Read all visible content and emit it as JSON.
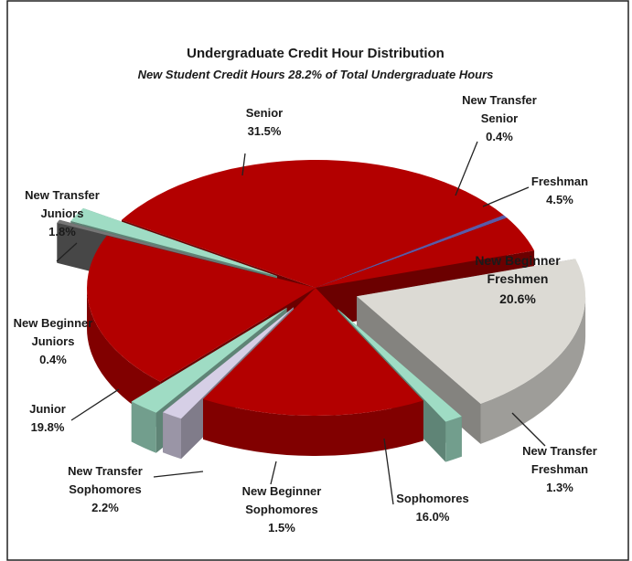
{
  "chart_data": {
    "type": "pie",
    "title": "Undergraduate Credit Hour Distribution",
    "subtitle": "New Student Credit Hours  28.2% of Total Undergraduate Hours",
    "categories": [
      "Senior",
      "New Transfer Senior",
      "Freshman",
      "New  Beginner Freshmen",
      "New Transfer Freshman",
      "Sophomores",
      "New Beginner Sophomores",
      "New Transfer Sophomores",
      "Junior",
      "New Beginner Juniors",
      "New Transfer Juniors"
    ],
    "values": [
      31.5,
      0.4,
      4.5,
      20.6,
      1.3,
      16.0,
      1.5,
      2.2,
      19.8,
      0.4,
      1.8
    ],
    "value_labels": [
      "31.5%",
      "0.4%",
      "4.5%",
      "20.6%",
      "1.3%",
      "16.0%",
      "1.5%",
      "2.2%",
      "19.8%",
      "0.4%",
      "1.8%"
    ],
    "colors": [
      "#b30000",
      "#5a5aa8",
      "#b30000",
      "#dcdad4",
      "#9fdcc4",
      "#b30000",
      "#d6cfe6",
      "#9fdcc4",
      "#b30000",
      "#767676",
      "#9fdcc4"
    ]
  }
}
